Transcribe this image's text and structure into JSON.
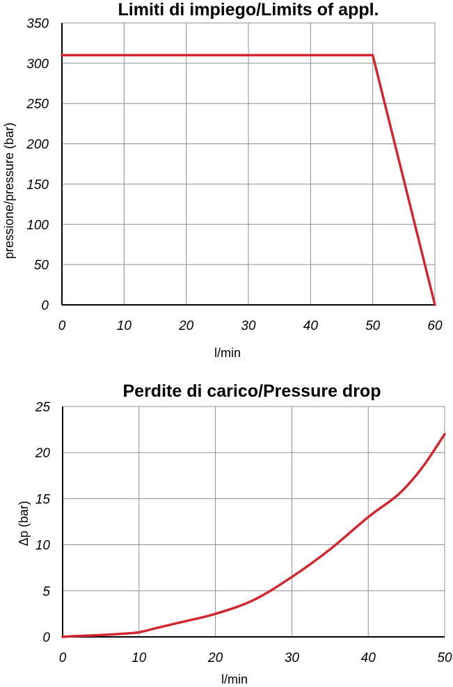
{
  "chart_data": [
    {
      "type": "line",
      "title": "Limiti di impiego/Limits of appl.",
      "xlabel": "l/min",
      "ylabel": "pressione/pressure (bar)",
      "xlim": [
        0,
        60
      ],
      "ylim": [
        0,
        350
      ],
      "xticks": [
        "0",
        "10",
        "20",
        "30",
        "40",
        "50",
        "60"
      ],
      "yticks": [
        "0",
        "50",
        "100",
        "150",
        "200",
        "250",
        "300",
        "350"
      ],
      "grid": true,
      "series": [
        {
          "x": [
            0,
            50,
            60
          ],
          "y": [
            310,
            310,
            0
          ]
        }
      ],
      "color": "#d22630"
    },
    {
      "type": "line",
      "title": "Perdite di carico/Pressure drop",
      "xlabel": "l/min",
      "ylabel": "Δp (bar)",
      "xlim": [
        0,
        50
      ],
      "ylim": [
        0,
        25
      ],
      "xticks": [
        "0",
        "10",
        "20",
        "30",
        "40",
        "50"
      ],
      "yticks": [
        "0",
        "5",
        "10",
        "15",
        "20",
        "25"
      ],
      "grid": true,
      "series": [
        {
          "x": [
            0,
            2,
            5,
            8,
            10,
            12,
            15,
            20,
            25,
            30,
            35,
            40,
            44,
            47,
            50
          ],
          "y": [
            0,
            0.1,
            0.2,
            0.35,
            0.5,
            0.9,
            1.5,
            2.5,
            4.0,
            6.5,
            9.5,
            13.0,
            15.5,
            18.3,
            22.0
          ]
        }
      ],
      "color": "#d22630"
    }
  ]
}
